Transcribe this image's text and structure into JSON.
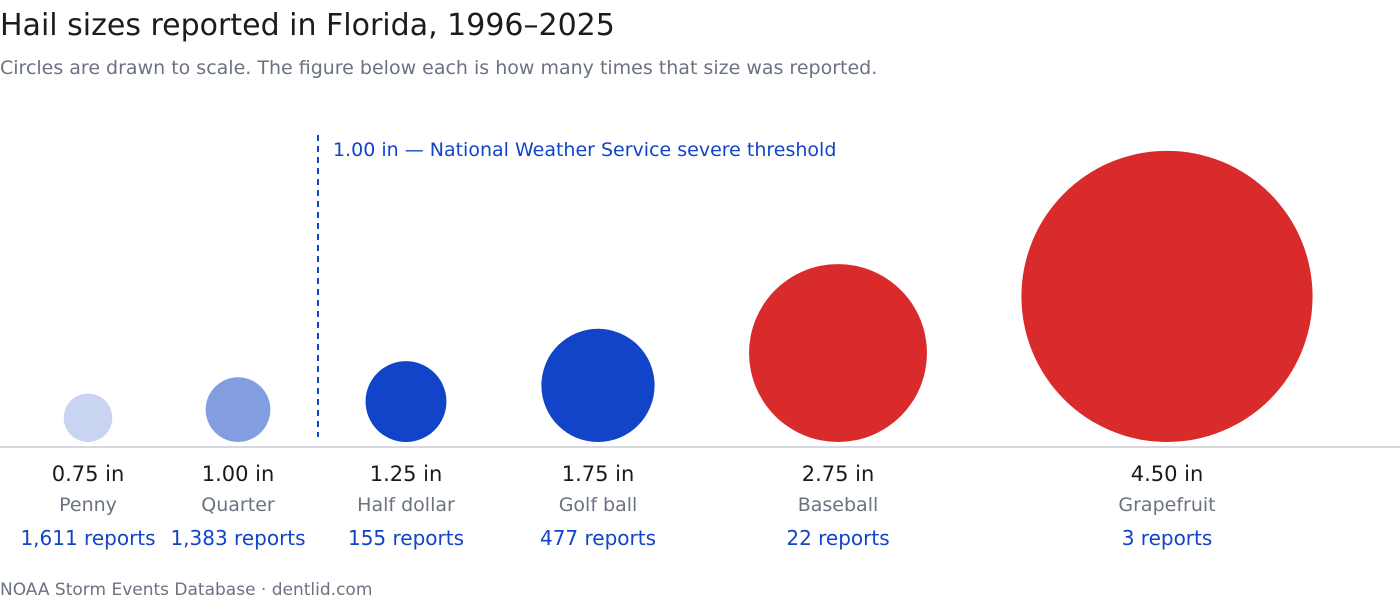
{
  "title": "Hail sizes reported in Florida, 1996–2025",
  "subtitle": "Circles are drawn to scale. The figure below each is how many times that size was reported.",
  "footer": "NOAA Storm Events Database · dentlid.com",
  "chart_data": {
    "type": "bubble",
    "threshold": {
      "value": 1.0,
      "label": "1.00 in — National Weather Service severe threshold",
      "color": "#1144c8"
    },
    "items": [
      {
        "size_in": 0.75,
        "size_label": "0.75 in",
        "name": "Penny",
        "reports": 1611,
        "reports_label": "1,611 reports",
        "color": "#c8d4f0"
      },
      {
        "size_in": 1.0,
        "size_label": "1.00 in",
        "name": "Quarter",
        "reports": 1383,
        "reports_label": "1,383 reports",
        "color": "#829ee0"
      },
      {
        "size_in": 1.25,
        "size_label": "1.25 in",
        "name": "Half dollar",
        "reports": 155,
        "reports_label": "155 reports",
        "color": "#1144c8"
      },
      {
        "size_in": 1.75,
        "size_label": "1.75 in",
        "name": "Golf ball",
        "reports": 477,
        "reports_label": "477 reports",
        "color": "#1144c8"
      },
      {
        "size_in": 2.75,
        "size_label": "2.75 in",
        "name": "Baseball",
        "reports": 22,
        "reports_label": "22 reports",
        "color": "#d92b2b"
      },
      {
        "size_in": 4.5,
        "size_label": "4.50 in",
        "name": "Grapefruit",
        "reports": 3,
        "reports_label": "3 reports",
        "color": "#d92b2b"
      }
    ]
  },
  "colors": {
    "size_text": "#1a1a1a",
    "name_text": "#6b7280",
    "reports_text": "#1144c8",
    "baseline": "#c9ccd3"
  }
}
